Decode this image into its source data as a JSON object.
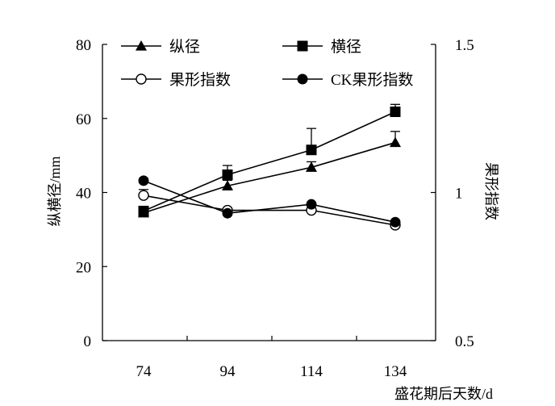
{
  "chart_data": {
    "type": "line",
    "title": "",
    "xlabel": "盛花期后天数/d",
    "ylabel_left": "纵横径/mm",
    "ylabel_right": "果形指数",
    "x": [
      74,
      94,
      114,
      134
    ],
    "ylim_left": [
      0,
      80
    ],
    "ylim_right": [
      0.5,
      1.5
    ],
    "yticks_left": [
      "0",
      "20",
      "40",
      "60",
      "80"
    ],
    "yticks_right": [
      "0.5",
      "1",
      "1.5"
    ],
    "xticks": [
      "74",
      "94",
      "114",
      "134"
    ],
    "grid": false,
    "legend_position": "top",
    "series": [
      {
        "name": "纵径",
        "axis": "left",
        "marker": "triangle-filled",
        "values": [
          34.5,
          41.8,
          46.8,
          53.5
        ],
        "errors": [
          1.2,
          1.5,
          1.5,
          3.0
        ]
      },
      {
        "name": "横径",
        "axis": "left",
        "marker": "square-filled",
        "values": [
          35.0,
          44.8,
          51.5,
          61.8
        ],
        "errors": [
          1.0,
          2.5,
          5.8,
          2.0
        ]
      },
      {
        "name": "果形指数",
        "axis": "right",
        "marker": "circle-open",
        "values": [
          0.99,
          0.94,
          0.94,
          0.89
        ],
        "errors": [
          0.02,
          0,
          0,
          0
        ]
      },
      {
        "name": "CK果形指数",
        "axis": "right",
        "marker": "circle-filled",
        "values": [
          1.04,
          0.93,
          0.96,
          0.9
        ],
        "errors": [
          0,
          0,
          0,
          0
        ]
      }
    ]
  }
}
